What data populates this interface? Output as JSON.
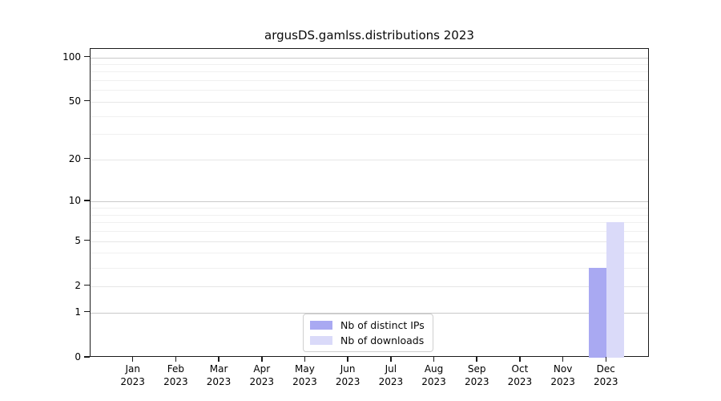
{
  "title": "argusDS.gamlss.distributions 2023",
  "legend": {
    "items": [
      {
        "label": "Nb of distinct IPs",
        "color": "#a9a9f2"
      },
      {
        "label": "Nb of downloads",
        "color": "#dadaf9"
      }
    ]
  },
  "chart_data": {
    "type": "bar",
    "title": "argusDS.gamlss.distributions 2023",
    "categories": [
      "Jan 2023",
      "Feb 2023",
      "Mar 2023",
      "Apr 2023",
      "May 2023",
      "Jun 2023",
      "Jul 2023",
      "Aug 2023",
      "Sep 2023",
      "Oct 2023",
      "Nov 2023",
      "Dec 2023"
    ],
    "series": [
      {
        "name": "Nb of distinct IPs",
        "color": "#a9a9f2",
        "values": [
          0,
          0,
          0,
          0,
          0,
          0,
          0,
          0,
          0,
          0,
          0,
          3
        ]
      },
      {
        "name": "Nb of downloads",
        "color": "#dadaf9",
        "values": [
          0,
          0,
          0,
          0,
          0,
          0,
          0,
          0,
          0,
          0,
          0,
          7
        ]
      }
    ],
    "xlabel": "",
    "ylabel": "",
    "yscale": "log1p",
    "ylim": [
      0,
      114
    ],
    "y_ticks": [
      0,
      1,
      2,
      5,
      10,
      20,
      50,
      100
    ],
    "y_minor_ticks": [
      3,
      4,
      6,
      7,
      8,
      9,
      30,
      40,
      60,
      70,
      80,
      90
    ],
    "y_strong_grid_ticks": [
      1,
      10,
      100
    ],
    "grid": "horizontal",
    "legend_position": "inside-bottom-center"
  }
}
